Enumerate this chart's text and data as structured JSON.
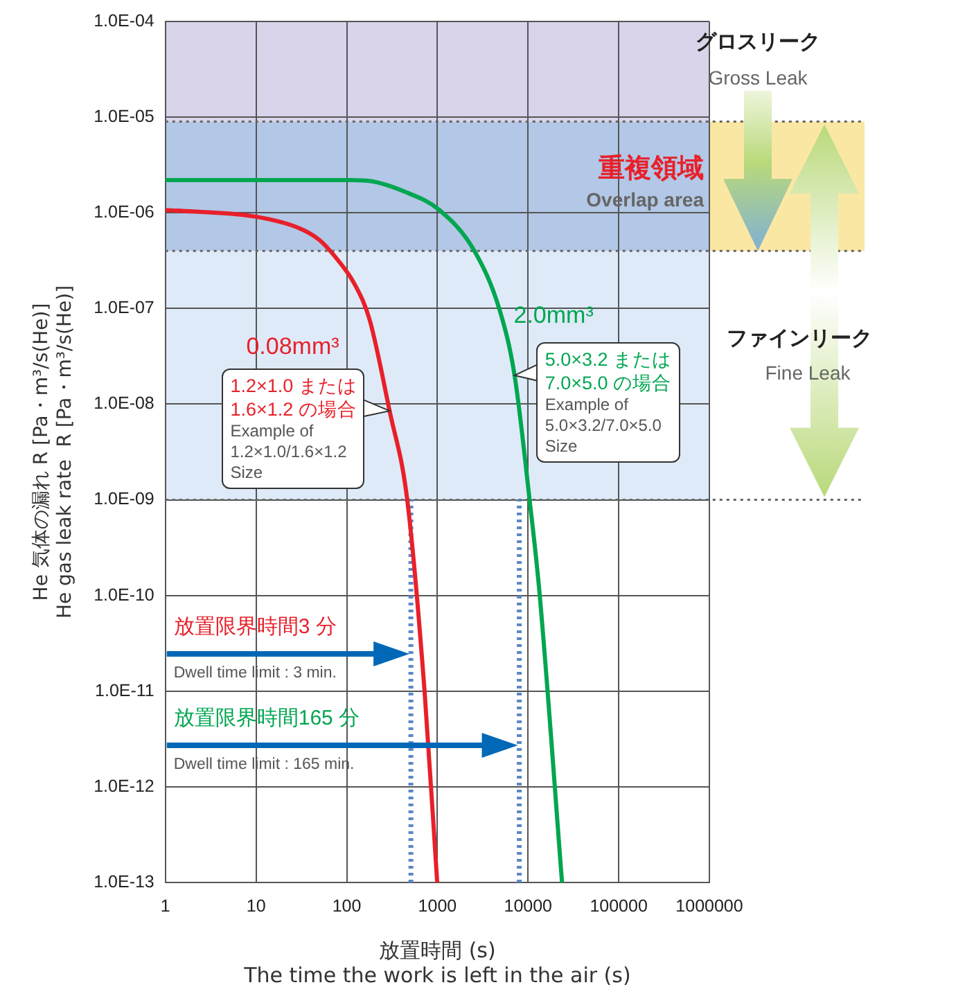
{
  "chart_data": {
    "type": "line",
    "xlabel": "放置時間 (s)\nThe time the work is left in the air (s)",
    "ylabel": "He 気体の漏れ R [Pa・m³/s(He)]\nHe gas leak rate  R [Pa・m³/s(He)]",
    "log": "xy",
    "grid": true,
    "legend": false,
    "marker": "none",
    "xlim": [
      1,
      1000000
    ],
    "xticks": [
      1,
      10,
      100,
      1000,
      10000,
      100000,
      1000000
    ],
    "ylim": [
      1e-13,
      0.0001
    ],
    "yticks": [
      {
        "value": 0.0001,
        "label": "1.0E-04"
      },
      {
        "value": 1e-05,
        "label": "1.0E-05"
      },
      {
        "value": 1e-06,
        "label": "1.0E-06"
      },
      {
        "value": 1e-07,
        "label": "1.0E-07"
      },
      {
        "value": 1e-08,
        "label": "1.0E-08"
      },
      {
        "value": 1e-09,
        "label": "1.0E-09"
      },
      {
        "value": 1e-10,
        "label": "1.0E-10"
      },
      {
        "value": 1e-11,
        "label": "1.0E-11"
      },
      {
        "value": 1e-12,
        "label": "1.0E-12"
      },
      {
        "value": 1e-13,
        "label": "1.0E-13"
      }
    ],
    "series": [
      {
        "name": "0.08mm³",
        "color": "#e8202a",
        "x": [
          1,
          10,
          30,
          50,
          74,
          122,
          179,
          297,
          465,
          722,
          995
        ],
        "values": [
          1.07e-06,
          9.1e-07,
          6.9e-07,
          5.2e-07,
          3.5e-07,
          1.8e-07,
          7.6e-08,
          8.5e-09,
          1e-09,
          1e-11,
          1e-13
        ]
      },
      {
        "name": "2.0mm³",
        "color": "#00a650",
        "x": [
          1,
          100,
          178,
          437,
          1050,
          2560,
          4880,
          7100,
          10400,
          13400,
          23700
        ],
        "values": [
          2.2e-06,
          2.2e-06,
          2.15e-06,
          1.66e-06,
          1.07e-06,
          4e-07,
          9.5e-08,
          2e-08,
          1e-09,
          1.05e-10,
          1e-13
        ]
      }
    ],
    "bands": [
      {
        "axis": "y",
        "from": 9e-06,
        "to": 0.0001,
        "color": "#d9d4ea"
      },
      {
        "axis": "y",
        "from": 4e-07,
        "to": 9e-06,
        "color": "#b3c7e6",
        "label": "重複領域"
      },
      {
        "axis": "y",
        "from": 1e-09,
        "to": 4e-07,
        "color": "#dfeaf8"
      }
    ],
    "ref_lines": [
      {
        "axis": "y",
        "value": 9e-06,
        "color": "#666666",
        "line_style": "dotted"
      },
      {
        "axis": "y",
        "value": 4e-07,
        "color": "#666666",
        "line_style": "dotted"
      },
      {
        "axis": "y",
        "value": 1e-09,
        "color": "#666666",
        "line_style": "dotted"
      },
      {
        "axis": "x",
        "value": 510,
        "color": "#5b87c9",
        "line_style": "dotted"
      },
      {
        "axis": "x",
        "value": 8000,
        "color": "#5b87c9",
        "line_style": "dotted"
      }
    ],
    "annotations": [
      {
        "text": "1.2×1.0 または\n1.6×1.2 の場合\nExample of\n1.2×1.0/1.6×1.2\nSize",
        "x": 297,
        "y": 8.5e-09
      },
      {
        "text": "5.0×3.2 または\n7.0×5.0 の場合\nExample of\n5.0×3.2/7.0×5.0\nSize",
        "x": 7100,
        "y": 2e-08
      },
      "Overlap area",
      "グロスリーク",
      "Gross Leak",
      "ファインリーク",
      "Fine Leak",
      "放置限界時間3 分",
      "Dwell time limit : 3 min.",
      "放置限界時間165 分",
      "Dwell time limit : 165 min."
    ]
  }
}
